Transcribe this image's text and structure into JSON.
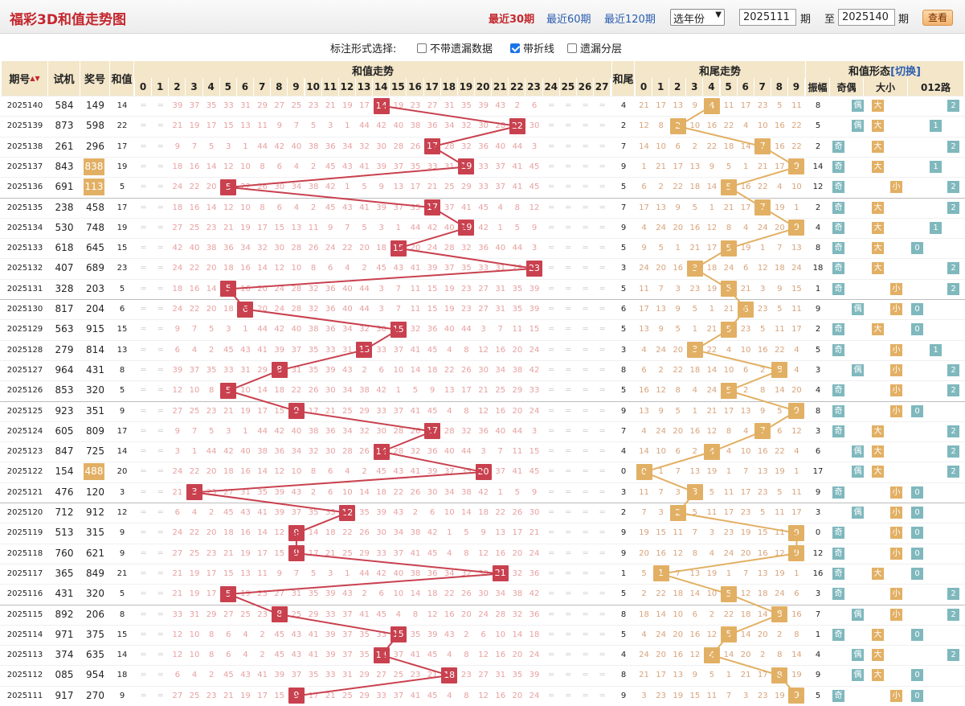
{
  "header": {
    "title": "福彩3D和值走势图",
    "links": [
      "最近30期",
      "最近60期",
      "最近120期"
    ],
    "active": 0,
    "year_select": "选年份",
    "from": "2025111",
    "to": "2025140",
    "label_period": "期",
    "label_to": "至",
    "btn": "查看"
  },
  "options": {
    "label": "标注形式选择:",
    "items": [
      {
        "label": "不带遗漏数据",
        "checked": false
      },
      {
        "label": "带折线",
        "checked": true
      },
      {
        "label": "遗漏分层",
        "checked": false
      }
    ]
  },
  "cols": {
    "period": "期号",
    "sort": "▲▼",
    "trial": "试机",
    "prize": "奖号",
    "sum": "和值",
    "sum_trend": "和值走势",
    "tail": "和尾",
    "tail_trend": "和尾走势",
    "form": "和值形态",
    "switch": "[切换]",
    "amp": "振幅",
    "oe": "奇偶",
    "bs": "大小",
    "r012": "012路"
  },
  "sum_nums": [
    "0",
    "1",
    "2",
    "3",
    "4",
    "5",
    "6",
    "7",
    "8",
    "9",
    "10",
    "11",
    "12",
    "13",
    "14",
    "15",
    "16",
    "17",
    "18",
    "19",
    "20",
    "21",
    "22",
    "23",
    "24",
    "25",
    "26",
    "27"
  ],
  "tail_nums": [
    "0",
    "1",
    "2",
    "3",
    "4",
    "5",
    "6",
    "7",
    "8",
    "9"
  ],
  "labels": {
    "odd": "奇",
    "even": "偶",
    "big": "大",
    "small": "小",
    "r0": "0",
    "r1": "1",
    "r2": "2"
  },
  "rows": [
    {
      "p": "2025140",
      "t": "584",
      "z": "149",
      "zt": false,
      "s": "14",
      "tail": "4",
      "amp": "8"
    },
    {
      "p": "2025139",
      "t": "873",
      "z": "598",
      "zt": false,
      "s": "22",
      "tail": "2",
      "amp": "5"
    },
    {
      "p": "2025138",
      "t": "261",
      "z": "296",
      "zt": false,
      "s": "17",
      "tail": "7",
      "amp": "2"
    },
    {
      "p": "2025137",
      "t": "843",
      "z": "838",
      "zt": true,
      "s": "19",
      "tail": "9",
      "amp": "14"
    },
    {
      "p": "2025136",
      "t": "691",
      "z": "113",
      "zt": true,
      "s": "5",
      "tail": "5",
      "amp": "12"
    },
    {
      "p": "2025135",
      "t": "238",
      "z": "458",
      "zt": false,
      "s": "17",
      "tail": "7",
      "amp": "2"
    },
    {
      "p": "2025134",
      "t": "530",
      "z": "748",
      "zt": false,
      "s": "19",
      "tail": "9",
      "amp": "4"
    },
    {
      "p": "2025133",
      "t": "618",
      "z": "645",
      "zt": false,
      "s": "15",
      "tail": "5",
      "amp": "8"
    },
    {
      "p": "2025132",
      "t": "407",
      "z": "689",
      "zt": false,
      "s": "23",
      "tail": "3",
      "amp": "18"
    },
    {
      "p": "2025131",
      "t": "328",
      "z": "203",
      "zt": false,
      "s": "5",
      "tail": "5",
      "amp": "1"
    },
    {
      "p": "2025130",
      "t": "817",
      "z": "204",
      "zt": false,
      "s": "6",
      "tail": "6",
      "amp": "9"
    },
    {
      "p": "2025129",
      "t": "563",
      "z": "915",
      "zt": false,
      "s": "15",
      "tail": "5",
      "amp": "2"
    },
    {
      "p": "2025128",
      "t": "279",
      "z": "814",
      "zt": false,
      "s": "13",
      "tail": "3",
      "amp": "5"
    },
    {
      "p": "2025127",
      "t": "964",
      "z": "431",
      "zt": false,
      "s": "8",
      "tail": "8",
      "amp": "3"
    },
    {
      "p": "2025126",
      "t": "853",
      "z": "320",
      "zt": false,
      "s": "5",
      "tail": "5",
      "amp": "4"
    },
    {
      "p": "2025125",
      "t": "923",
      "z": "351",
      "zt": false,
      "s": "9",
      "tail": "9",
      "amp": "8"
    },
    {
      "p": "2025124",
      "t": "605",
      "z": "809",
      "zt": false,
      "s": "17",
      "tail": "7",
      "amp": "3"
    },
    {
      "p": "2025123",
      "t": "847",
      "z": "725",
      "zt": false,
      "s": "14",
      "tail": "4",
      "amp": "6"
    },
    {
      "p": "2025122",
      "t": "154",
      "z": "488",
      "zt": true,
      "s": "20",
      "tail": "0",
      "amp": "17"
    },
    {
      "p": "2025121",
      "t": "476",
      "z": "120",
      "zt": false,
      "s": "3",
      "tail": "3",
      "amp": "9"
    },
    {
      "p": "2025120",
      "t": "712",
      "z": "912",
      "zt": false,
      "s": "12",
      "tail": "2",
      "amp": "3"
    },
    {
      "p": "2025119",
      "t": "513",
      "z": "315",
      "zt": false,
      "s": "9",
      "tail": "9",
      "amp": "0"
    },
    {
      "p": "2025118",
      "t": "760",
      "z": "621",
      "zt": false,
      "s": "9",
      "tail": "9",
      "amp": "12"
    },
    {
      "p": "2025117",
      "t": "365",
      "z": "849",
      "zt": false,
      "s": "21",
      "tail": "1",
      "amp": "16"
    },
    {
      "p": "2025116",
      "t": "431",
      "z": "320",
      "zt": false,
      "s": "5",
      "tail": "5",
      "amp": "3"
    },
    {
      "p": "2025115",
      "t": "892",
      "z": "206",
      "zt": false,
      "s": "8",
      "tail": "8",
      "amp": "7"
    },
    {
      "p": "2025114",
      "t": "971",
      "z": "375",
      "zt": false,
      "s": "15",
      "tail": "5",
      "amp": "1"
    },
    {
      "p": "2025113",
      "t": "374",
      "z": "635",
      "zt": false,
      "s": "14",
      "tail": "4",
      "amp": "4"
    },
    {
      "p": "2025112",
      "t": "085",
      "z": "954",
      "zt": false,
      "s": "18",
      "tail": "8",
      "amp": "9"
    },
    {
      "p": "2025111",
      "t": "917",
      "z": "270",
      "zt": false,
      "s": "9",
      "tail": "9",
      "amp": "5"
    }
  ],
  "colors": {
    "hit": "#c9414f",
    "tail": "#e2b064",
    "teal": "#7fb8bd",
    "orange": "#e2b064",
    "header": "#f3e6c9",
    "link": "#2a5db0",
    "title": "#c4272e"
  }
}
